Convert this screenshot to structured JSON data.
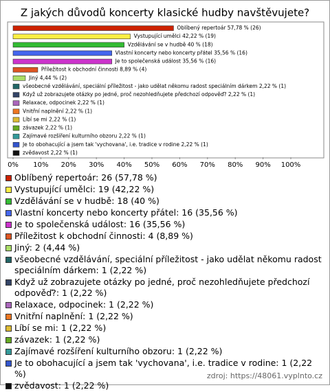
{
  "chart_data": {
    "type": "bar",
    "orientation": "horizontal",
    "title": "Z jakých důvodů koncerty klasické hudby navštěvujete?",
    "categories": [
      "Oblíbený repertoár",
      "Vystupující umělci",
      "Vzdělávání se v hudbě",
      "Vlastní koncerty nebo koncerty přátel",
      "Je to společenská událost",
      "Příležitost k obchodní činnosti",
      "Jiný",
      "všeobecné vzdělávání, speciální příležitost - jako udělat někomu radost speciálním dárkem",
      "Když už zobrazujete otázky po jedné, proč nezohledňujete předchozí odpověď?",
      "Relaxace, odpocinek",
      "Vnitřní naplnění",
      "Líbí se mi",
      "závazek",
      "Zajímavé rozšíření kulturního obzoru",
      "Je to obohacující a jsem tak 'vychovana', i.e. tradice v rodine",
      "zvědavost"
    ],
    "values": [
      57.78,
      42.22,
      40,
      35.56,
      35.56,
      8.89,
      4.44,
      2.22,
      2.22,
      2.22,
      2.22,
      2.22,
      2.22,
      2.22,
      2.22,
      2.22
    ],
    "counts": [
      26,
      19,
      18,
      16,
      16,
      4,
      2,
      1,
      1,
      1,
      1,
      1,
      1,
      1,
      1,
      1
    ],
    "value_labels": [
      "Oblíbený repertoár 57,78 % (26)",
      "Vystupující umělci 42,22 % (19)",
      "Vzdělávání se v hudbě 40 % (18)",
      "Vlastní koncerty nebo koncerty přátel 35,56 % (16)",
      "Je to společenská událost 35,56 % (16)",
      "Příležitost k obchodní činnosti 8,89 % (4)",
      "Jiný 4,44 % (2)",
      "všeobecné vzdělávání, speciální příležitost - jako udělat někomu radost speciálním dárkem 2,22 % (1)",
      "Když už zobrazujete otázky po jedné, proč nezohledňujete předchozí odpověď? 2,22 % (1)",
      "Relaxace, odpocinek 2,22 % (1)",
      "Vnitřní naplnění 2,22 % (1)",
      "Líbí se mi 2,22 % (1)",
      "závazek 2,22 % (1)",
      "Zajímavé rozšíření kulturního obzoru 2,22 % (1)",
      "Je to obohacující a jsem tak 'vychovana', i.e. tradice v rodine 2,22 % (1)",
      "zvědavost 2,22 % (1)"
    ],
    "legend_labels": [
      "Oblíbený repertoár: 26 (57,78 %)",
      "Vystupující umělci: 19 (42,22 %)",
      "Vzdělávání se v hudbě: 18 (40 %)",
      "Vlastní koncerty nebo koncerty přátel: 16 (35,56 %)",
      "Je to společenská událost: 16 (35,56 %)",
      "Příležitost k obchodní činnosti: 4 (8,89 %)",
      "Jiný: 2 (4,44 %)",
      "všeobecné vzdělávání, speciální příležitost - jako udělat někomu radost speciálním dárkem: 1 (2,22 %)",
      "Když už zobrazujete otázky po jedné, proč nezohledňujete předchozí odpověď?: 1 (2,22 %)",
      "Relaxace, odpocinek: 1 (2,22 %)",
      "Vnitřní naplnění: 1 (2,22 %)",
      "Líbí se mi: 1 (2,22 %)",
      "závazek: 1 (2,22 %)",
      "Zajímavé rozšíření kulturního obzoru: 1 (2,22 %)",
      "Je to obohacující a jsem tak 'vychovana', i.e. tradice v rodine: 1 (2,22 %)",
      "zvědavost: 1 (2,22 %)"
    ],
    "colors": [
      "#cc2200",
      "#ffee44",
      "#33bb33",
      "#4466ee",
      "#cc33cc",
      "#dd5522",
      "#aadd66",
      "#226666",
      "#334466",
      "#aa66bb",
      "#ee7722",
      "#ddbb33",
      "#66aa22",
      "#339999",
      "#3355cc",
      "#111111"
    ],
    "xlim": [
      0,
      100
    ],
    "xticks": [
      {
        "value": 0,
        "label": "0%"
      },
      {
        "value": 10,
        "label": "10%"
      },
      {
        "value": 20,
        "label": "20%"
      },
      {
        "value": 30,
        "label": "30%"
      },
      {
        "value": 40,
        "label": "40%"
      },
      {
        "value": 50,
        "label": "50%"
      },
      {
        "value": 60,
        "label": "60%"
      },
      {
        "value": 70,
        "label": "70%"
      },
      {
        "value": 80,
        "label": "80%"
      },
      {
        "value": 90,
        "label": "90%"
      },
      {
        "value": 100,
        "label": "100%"
      }
    ],
    "source": "zdroj: https://48061.vyplnto.cz"
  }
}
